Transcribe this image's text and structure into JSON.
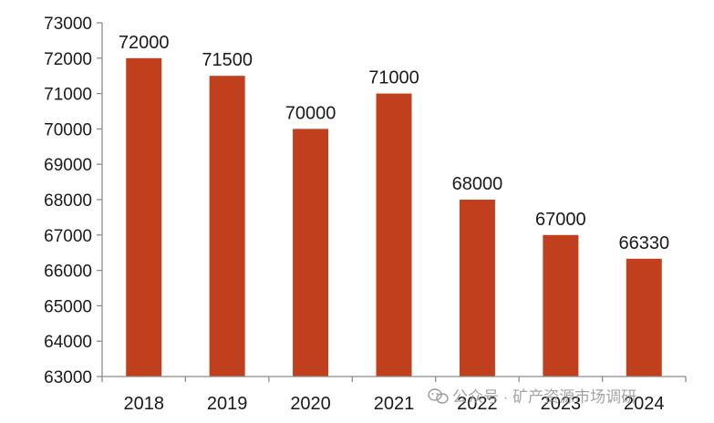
{
  "chart_data": {
    "type": "bar",
    "categories": [
      "2018",
      "2019",
      "2020",
      "2021",
      "2022",
      "2023",
      "2024"
    ],
    "values": [
      72000,
      71500,
      70000,
      71000,
      68000,
      67000,
      66330
    ],
    "data_labels": [
      "72000",
      "71500",
      "70000",
      "71000",
      "68000",
      "67000",
      "66330"
    ],
    "ylim": [
      63000,
      73000
    ],
    "yticks": [
      63000,
      64000,
      65000,
      66000,
      67000,
      68000,
      69000,
      70000,
      71000,
      72000,
      73000
    ],
    "ytick_labels": [
      "63000",
      "64000",
      "65000",
      "66000",
      "67000",
      "68000",
      "69000",
      "70000",
      "71000",
      "72000",
      "73000"
    ],
    "title": "",
    "xlabel": "",
    "ylabel": "",
    "grid": false,
    "bar_color": "#C0401E",
    "axis_color": "#8c8c8c"
  },
  "watermark": {
    "text": "公众号 · 矿产资源市场调研",
    "icon": "wechat-icon"
  }
}
